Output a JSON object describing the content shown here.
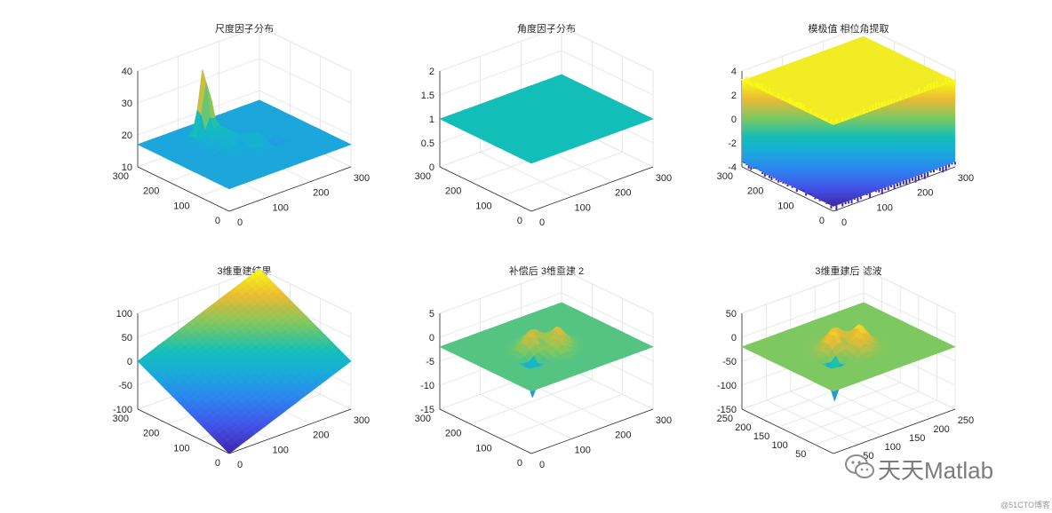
{
  "chart_data": [
    {
      "type": "surface3d",
      "title": "尺度因子分布",
      "xlim": [
        0,
        300
      ],
      "ylim": [
        0,
        300
      ],
      "zlim": [
        10,
        40
      ],
      "xticks": [
        "0",
        "100",
        "200",
        "300"
      ],
      "yticks": [
        "0",
        "100",
        "200",
        "300"
      ],
      "zticks": [
        "10",
        "20",
        "30",
        "40"
      ],
      "surface": "base 17 with a narrow peak near 38, a ring of smaller bumps around the centre and a dip to about 12"
    },
    {
      "type": "surface3d",
      "title": "角度因子分布",
      "xlim": [
        0,
        300
      ],
      "ylim": [
        0,
        300
      ],
      "zlim": [
        0,
        2
      ],
      "xticks": [
        "0",
        "100",
        "200",
        "300"
      ],
      "yticks": [
        "0",
        "100",
        "200",
        "300"
      ],
      "zticks": [
        "0",
        "0.5",
        "1",
        "1.5",
        "2"
      ],
      "surface": "flat plane at 1"
    },
    {
      "type": "surface3d",
      "title": "模极值 相位角提取",
      "xlim": [
        0,
        300
      ],
      "ylim": [
        0,
        300
      ],
      "zlim": [
        -4,
        4
      ],
      "xticks": [
        "0",
        "100",
        "200",
        "300"
      ],
      "yticks": [
        "0",
        "100",
        "200",
        "300"
      ],
      "zticks": [
        "-4",
        "-2",
        "0",
        "2",
        "4"
      ],
      "surface": "noisy block spanning about -3.5 to 3.5"
    },
    {
      "type": "surface3d",
      "title": "3维重建结果",
      "xlim": [
        0,
        300
      ],
      "ylim": [
        0,
        300
      ],
      "zlim": [
        -100,
        100
      ],
      "xticks": [
        "0",
        "100",
        "200",
        "300"
      ],
      "yticks": [
        "0",
        "100",
        "200",
        "300"
      ],
      "zticks": [
        "-100",
        "-50",
        "0",
        "50",
        "100"
      ],
      "surface": "tilted plane rising from about -100 to 100"
    },
    {
      "type": "surface3d",
      "title": "补偿后 3维重建 2",
      "xlim": [
        0,
        300
      ],
      "ylim": [
        0,
        300
      ],
      "zlim": [
        -15,
        5
      ],
      "xticks": [
        "0",
        "100",
        "200",
        "300"
      ],
      "yticks": [
        "0",
        "100",
        "200",
        "300"
      ],
      "zticks": [
        "-15",
        "-10",
        "-5",
        "0",
        "5"
      ],
      "surface": "plane near -2 with a ring of peaks and a sharp dip near -12"
    },
    {
      "type": "surface3d",
      "title": "3维重建后 滤波",
      "xlim": [
        0,
        250
      ],
      "ylim": [
        0,
        250
      ],
      "zlim": [
        -150,
        50
      ],
      "xticks": [
        "50",
        "100",
        "150",
        "200",
        "250"
      ],
      "yticks": [
        "50",
        "100",
        "150",
        "200",
        "250"
      ],
      "zticks": [
        "-150",
        "-100",
        "-50",
        "0",
        "50"
      ],
      "surface": "plane near -20 with a ring of peaks and a sharp dip near -130"
    }
  ],
  "watermark": {
    "main": "天天Matlab",
    "small": "@51CTO博客"
  },
  "colors": {
    "low": "#3e26a8",
    "mid": "#13beb8",
    "high": "#f9fb15"
  }
}
